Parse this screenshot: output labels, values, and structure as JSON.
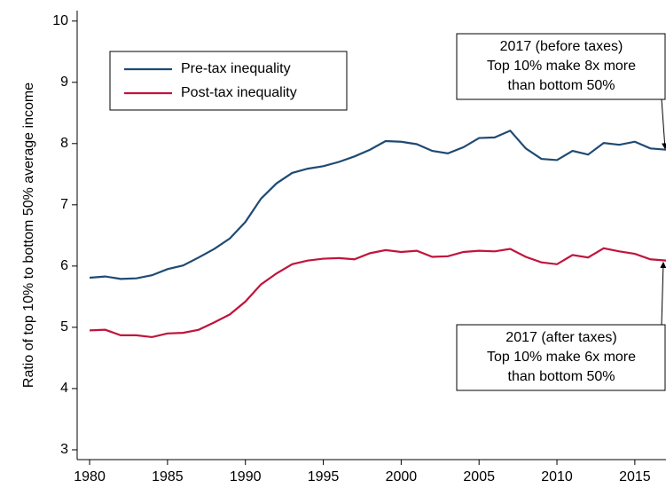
{
  "chart_data": {
    "type": "line",
    "ylabel": "Ratio of top 10% to bottom 50% average income",
    "x": [
      1980,
      1981,
      1982,
      1983,
      1984,
      1985,
      1986,
      1987,
      1988,
      1989,
      1990,
      1991,
      1992,
      1993,
      1994,
      1995,
      1996,
      1997,
      1998,
      1999,
      2000,
      2001,
      2002,
      2003,
      2004,
      2005,
      2006,
      2007,
      2008,
      2009,
      2010,
      2011,
      2012,
      2013,
      2014,
      2015,
      2016,
      2017
    ],
    "series": [
      {
        "name": "Pre-tax inequality",
        "color": "#1f4a73",
        "values": [
          5.81,
          5.83,
          5.79,
          5.8,
          5.85,
          5.95,
          6.01,
          6.14,
          6.28,
          6.45,
          6.72,
          7.1,
          7.35,
          7.52,
          7.59,
          7.63,
          7.7,
          7.79,
          7.9,
          8.04,
          8.03,
          7.99,
          7.88,
          7.84,
          7.94,
          8.09,
          8.1,
          8.21,
          7.92,
          7.75,
          7.73,
          7.88,
          7.82,
          8.01,
          7.98,
          8.03,
          7.92,
          7.9
        ]
      },
      {
        "name": "Post-tax inequality",
        "color": "#c0143c",
        "values": [
          4.95,
          4.96,
          4.87,
          4.87,
          4.84,
          4.9,
          4.91,
          4.96,
          5.08,
          5.21,
          5.42,
          5.7,
          5.88,
          6.03,
          6.09,
          6.12,
          6.13,
          6.11,
          6.21,
          6.26,
          6.23,
          6.25,
          6.15,
          6.16,
          6.23,
          6.25,
          6.24,
          6.28,
          6.15,
          6.06,
          6.03,
          6.18,
          6.14,
          6.29,
          6.24,
          6.2,
          6.11,
          6.09
        ]
      }
    ],
    "xlim": [
      1979.2,
      2017
    ],
    "ylim": [
      2.84,
      10.17
    ],
    "xticks": [
      1980,
      1985,
      1990,
      1995,
      2000,
      2005,
      2010,
      2015
    ],
    "yticks": [
      3,
      4,
      5,
      6,
      7,
      8,
      9,
      10
    ],
    "grid": false,
    "legend": "upper left",
    "annotations": [
      {
        "lines": [
          "2017 (before taxes)",
          "Top 10% make 8x more",
          "than bottom 50%"
        ]
      },
      {
        "lines": [
          "2017 (after taxes)",
          "Top 10% make 6x more",
          "than bottom 50%"
        ]
      }
    ]
  }
}
